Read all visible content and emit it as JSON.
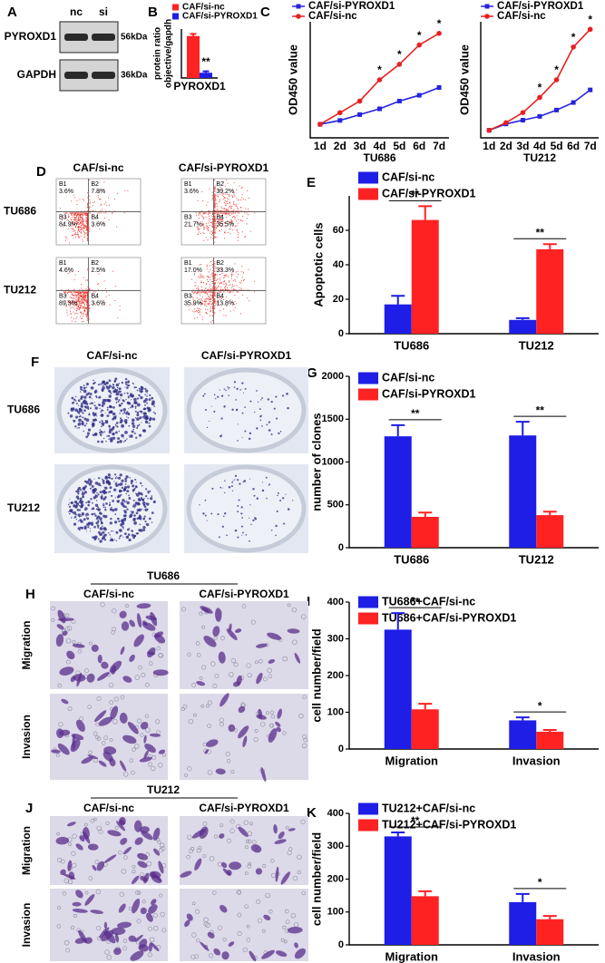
{
  "chart_data": [
    {
      "type": "bar",
      "panel": "B",
      "ylabel": [
        "protein ratio",
        "objective/gapdh"
      ],
      "xlabel": "PYROXD1",
      "series": [
        {
          "name": "CAF/si-nc",
          "color": "#ff2222",
          "values": [
            1.2
          ],
          "errors": [
            0.06
          ]
        },
        {
          "name": "CAF/si-PYROXD1",
          "color": "#1e1ee6",
          "values": [
            0.15
          ],
          "errors": [
            0.04
          ]
        }
      ],
      "ylim": [
        0,
        1.4
      ],
      "annotations": [
        {
          "text": "**"
        }
      ]
    },
    {
      "type": "line",
      "panel": "C",
      "ylabel": "OD450 value",
      "xlabel": "TU686",
      "categories": [
        "1d",
        "2d",
        "3d",
        "4d",
        "5d",
        "6d",
        "7d"
      ],
      "series": [
        {
          "name": "CAF/si-PYROXD1",
          "color": "#2424dd",
          "values": [
            0.35,
            0.45,
            0.6,
            0.75,
            0.95,
            1.1,
            1.3
          ]
        },
        {
          "name": "CAF/si-nc",
          "color": "#e82020",
          "values": [
            0.35,
            0.65,
            0.95,
            1.5,
            1.9,
            2.4,
            2.7
          ]
        }
      ],
      "ylim": [
        0,
        3
      ],
      "annotations": [
        {
          "category": "4d",
          "text": "*"
        },
        {
          "category": "5d",
          "text": "*"
        },
        {
          "category": "6d",
          "text": "*"
        },
        {
          "category": "7d",
          "text": "*"
        }
      ]
    },
    {
      "type": "line",
      "ylabel": "OD450 value",
      "xlabel": "TU212",
      "categories": [
        "1d",
        "2d",
        "3d",
        "4d",
        "5d",
        "6d",
        "7d"
      ],
      "series": [
        {
          "name": "CAF/si-PYROXD1",
          "color": "#2424dd",
          "values": [
            0.3,
            0.55,
            0.7,
            0.85,
            1.1,
            1.4,
            1.9
          ]
        },
        {
          "name": "CAF/si-nc",
          "color": "#e82020",
          "values": [
            0.3,
            0.6,
            1.0,
            1.6,
            2.3,
            3.6,
            4.3
          ]
        }
      ],
      "ylim": [
        0,
        4.6
      ],
      "annotations": [
        {
          "category": "4d",
          "text": "*"
        },
        {
          "category": "5d",
          "text": "*"
        },
        {
          "category": "6d",
          "text": "*"
        },
        {
          "category": "7d",
          "text": "*"
        }
      ]
    },
    {
      "type": "bar",
      "panel": "E",
      "ylabel": "Apoptotic cells",
      "categories": [
        "TU686",
        "TU212"
      ],
      "series": [
        {
          "name": "CAF/si-nc",
          "color": "#1e1ee6",
          "values": [
            17,
            8
          ],
          "errors": [
            5,
            1
          ]
        },
        {
          "name": "CAF/si-PYROXD1",
          "color": "#ff2222",
          "values": [
            66,
            49
          ],
          "errors": [
            8,
            3
          ]
        }
      ],
      "ylim": [
        0,
        80
      ],
      "yticks": [
        0,
        20,
        40,
        60
      ],
      "annotations": [
        {
          "category": "TU686",
          "text": "**"
        },
        {
          "category": "TU212",
          "text": "**"
        }
      ]
    },
    {
      "type": "bar",
      "panel": "G",
      "ylabel": "number of clones",
      "categories": [
        "TU686",
        "TU212"
      ],
      "series": [
        {
          "name": "CAF/si-nc",
          "color": "#1e1ee6",
          "values": [
            1300,
            1310
          ],
          "errors": [
            130,
            160
          ]
        },
        {
          "name": "CAF/si-PYROXD1",
          "color": "#ff2222",
          "values": [
            360,
            380
          ],
          "errors": [
            50,
            40
          ]
        }
      ],
      "ylim": [
        0,
        2000
      ],
      "yticks": [
        0,
        500,
        1000,
        1500,
        2000
      ],
      "annotations": [
        {
          "category": "TU686",
          "text": "**"
        },
        {
          "category": "TU212",
          "text": "**"
        }
      ]
    },
    {
      "type": "bar",
      "panel": "I",
      "ylabel": "cell number/field",
      "categories": [
        "Migration",
        "Invasion"
      ],
      "series": [
        {
          "name": "TU686+CAF/si-nc",
          "color": "#1e1ee6",
          "values": [
            325,
            78
          ],
          "errors": [
            45,
            8
          ]
        },
        {
          "name": "TU686+CAF/si-PYROXD1",
          "color": "#ff2222",
          "values": [
            108,
            47
          ],
          "errors": [
            15,
            5
          ]
        }
      ],
      "ylim": [
        0,
        400
      ],
      "yticks": [
        0,
        100,
        200,
        300,
        400
      ],
      "annotations": [
        {
          "category": "Migration",
          "text": "**"
        },
        {
          "category": "Invasion",
          "text": "*"
        }
      ]
    },
    {
      "type": "bar",
      "panel": "K",
      "ylabel": "cell number/field",
      "categories": [
        "Migration",
        "Invasion"
      ],
      "series": [
        {
          "name": "TU212+CAF/si-nc",
          "color": "#1e1ee6",
          "values": [
            330,
            130
          ],
          "errors": [
            12,
            25
          ]
        },
        {
          "name": "TU212+CAF/si-PYROXD1",
          "color": "#ff2222",
          "values": [
            148,
            78
          ],
          "errors": [
            15,
            10
          ]
        }
      ],
      "ylim": [
        0,
        400
      ],
      "yticks": [
        0,
        100,
        200,
        300,
        400
      ],
      "annotations": [
        {
          "category": "Migration",
          "text": "**"
        },
        {
          "category": "Invasion",
          "text": "*"
        }
      ]
    }
  ],
  "blot": {
    "panel": "A",
    "lanes": [
      "nc",
      "si"
    ],
    "rows": [
      {
        "name": "PYROXD1",
        "size": "56kDa"
      },
      {
        "name": "GAPDH",
        "size": "36kDa"
      }
    ]
  },
  "flow": {
    "panel": "D",
    "columns": [
      "CAF/si-nc",
      "CAF/si-PYROXD1"
    ],
    "rows": [
      {
        "name": "TU686",
        "plots": [
          {
            "quadrants": [
              {
                "name": "B1",
                "value": "3.6%"
              },
              {
                "name": "B2",
                "value": "7.8%"
              },
              {
                "name": "B3",
                "value": "84.9%"
              },
              {
                "name": "B4",
                "value": "3.6%"
              }
            ]
          },
          {
            "quadrants": [
              {
                "name": "B1",
                "value": "3.6%"
              },
              {
                "name": "B2",
                "value": "39.2%"
              },
              {
                "name": "B3",
                "value": "21.7%"
              },
              {
                "name": "B4",
                "value": "35.5%"
              }
            ]
          }
        ]
      },
      {
        "name": "TU212",
        "plots": [
          {
            "quadrants": [
              {
                "name": "B1",
                "value": "4.6%"
              },
              {
                "name": "B2",
                "value": "2.5%"
              },
              {
                "name": "B3",
                "value": "89.3%"
              },
              {
                "name": "B4",
                "value": "3.6%"
              }
            ]
          },
          {
            "quadrants": [
              {
                "name": "B1",
                "value": "17.0%"
              },
              {
                "name": "B2",
                "value": "33.3%"
              },
              {
                "name": "B3",
                "value": "35.9%"
              },
              {
                "name": "B4",
                "value": "13.8%"
              }
            ]
          }
        ]
      }
    ]
  },
  "colony": {
    "panel": "F",
    "columns": [
      "CAF/si-nc",
      "CAF/si-PYROXD1"
    ],
    "rows": [
      "TU686",
      "TU212"
    ]
  },
  "transwell": [
    {
      "panel": "H",
      "title": "TU686",
      "columns": [
        "CAF/si-nc",
        "CAF/si-PYROXD1"
      ],
      "rows": [
        "Migration",
        "Invasion"
      ]
    },
    {
      "panel": "J",
      "title": "TU212",
      "columns": [
        "CAF/si-nc",
        "CAF/si-PYROXD1"
      ],
      "rows": [
        "Migration",
        "Invasion"
      ]
    }
  ]
}
